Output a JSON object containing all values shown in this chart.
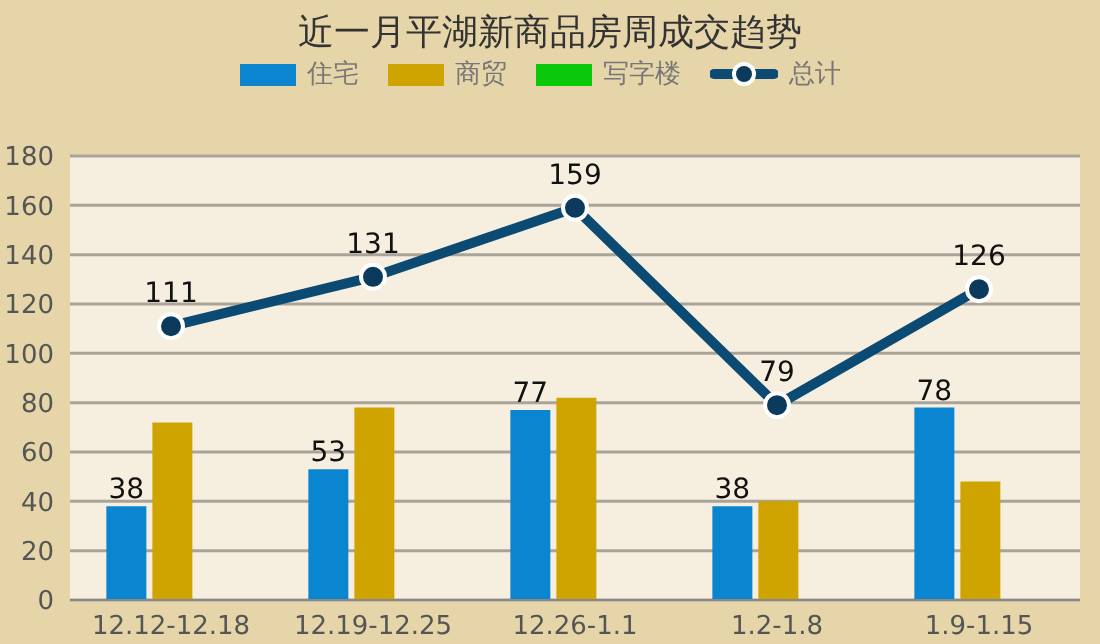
{
  "chart_data": {
    "type": "bar",
    "title": "近一月平湖新商品房周成交趋势",
    "categories": [
      "12.12-12.18",
      "12.19-12.25",
      "12.26-1.1",
      "1.2-1.8",
      "1.9-1.15"
    ],
    "series": [
      {
        "name": "住宅",
        "color": "#0a86d0",
        "values": [
          38,
          53,
          77,
          38,
          78
        ],
        "value_labels": [
          "38",
          "53",
          "77",
          "38",
          "78"
        ]
      },
      {
        "name": "商贸",
        "color": "#d0a400",
        "values": [
          72,
          78,
          82,
          40,
          48
        ]
      },
      {
        "name": "写字楼",
        "color": "#0ac80a",
        "values": [
          0,
          0,
          0,
          0,
          0
        ]
      },
      {
        "name": "总计",
        "type": "line",
        "color": "#0b4a73",
        "marker": "circle",
        "values": [
          111,
          131,
          159,
          79,
          126
        ],
        "value_labels": [
          "111",
          "131",
          "159",
          "79",
          "126"
        ]
      }
    ],
    "ylim": [
      0,
      180
    ],
    "yticks": [
      0,
      20,
      40,
      60,
      80,
      100,
      120,
      140,
      160,
      180
    ],
    "grid": "y",
    "legend": "top"
  }
}
